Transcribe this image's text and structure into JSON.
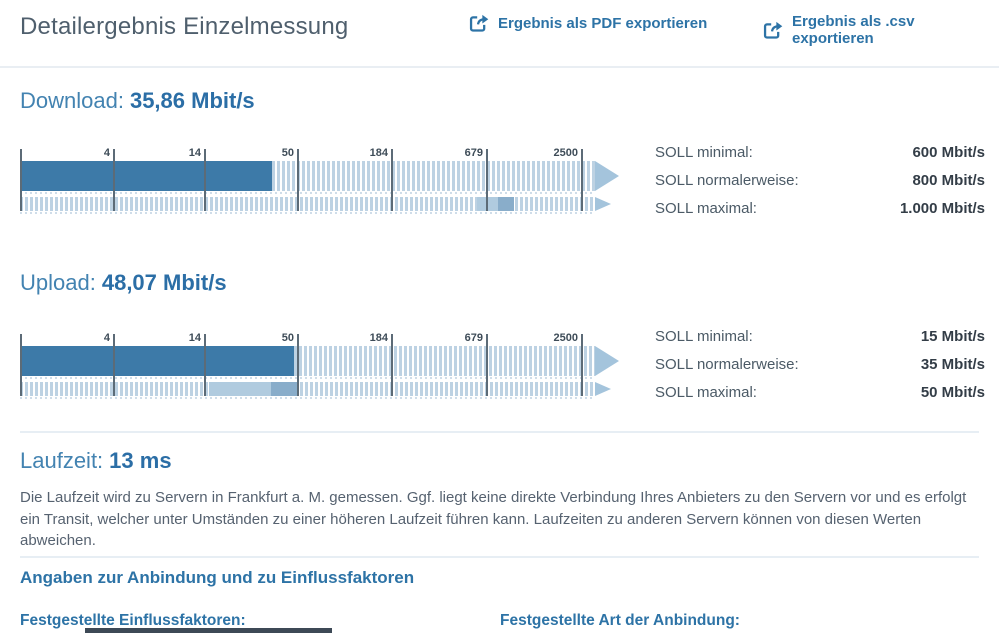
{
  "header": {
    "title": "Detailergebnis Einzelmessung",
    "export_pdf": "Ergebnis als PDF exportieren",
    "export_csv": "Ergebnis als .csv exportieren"
  },
  "download": {
    "label": "Download:",
    "value": "35,86 Mbit/s",
    "soll": [
      {
        "label": "SOLL minimal:",
        "value": "600 Mbit/s"
      },
      {
        "label": "SOLL normalerweise:",
        "value": "800 Mbit/s"
      },
      {
        "label": "SOLL maximal:",
        "value": "1.000 Mbit/s"
      }
    ]
  },
  "upload": {
    "label": "Upload:",
    "value": "48,07 Mbit/s",
    "soll": [
      {
        "label": "SOLL minimal:",
        "value": "15 Mbit/s"
      },
      {
        "label": "SOLL normalerweise:",
        "value": "35 Mbit/s"
      },
      {
        "label": "SOLL maximal:",
        "value": "50 Mbit/s"
      }
    ]
  },
  "laufzeit": {
    "label": "Laufzeit:",
    "value": "13 ms",
    "description": "Die Laufzeit wird zu Servern in Frankfurt a. M. gemessen. Ggf. liegt keine direkte Verbindung Ihres Anbieters zu den Servern vor und es erfolgt ein Transit, welcher unter Umständen zu einer höheren Laufzeit führen kann. Laufzeiten zu anderen Servern können von diesen Werten abweichen."
  },
  "anbindung": {
    "heading": "Angaben zur Anbindung und zu Einflussfaktoren",
    "left_label": "Festgestellte Einflussfaktoren:",
    "right_label": "Festgestellte Art der Anbindung:"
  },
  "chart_data": [
    {
      "type": "bar",
      "variant": "horizontal-log-gauge",
      "name": "download",
      "title": "Download",
      "measured_mbits": 35.86,
      "measured_display": "35,86 Mbit/s",
      "axis": {
        "scale": "log",
        "tick_values": [
          4,
          14,
          50,
          184,
          679,
          2500
        ],
        "unit": "Mbit/s"
      },
      "target_band": {
        "min": 600,
        "normal": 800,
        "max": 1000
      }
    },
    {
      "type": "bar",
      "variant": "horizontal-log-gauge",
      "name": "upload",
      "title": "Upload",
      "measured_mbits": 48.07,
      "measured_display": "48,07 Mbit/s",
      "axis": {
        "scale": "log",
        "tick_values": [
          4,
          14,
          50,
          184,
          679,
          2500
        ],
        "unit": "Mbit/s"
      },
      "target_band": {
        "min": 15,
        "normal": 35,
        "max": 50
      }
    }
  ],
  "colors": {
    "accent_blue": "#2d73a6",
    "heading_label_blue": "#4383b1",
    "heading_value_blue": "#2b6ea6",
    "title_gray": "#4f5f6d",
    "bar_solid": "#3d7aa8",
    "stripe": "#bdd2e3",
    "band_light": "#b0cbdf",
    "band_normal": "#89adca",
    "arrow": "#a4c4dc",
    "tick_line": "#5c6b77",
    "tick_label": "#3e4c58",
    "soll_label": "#4b5a66",
    "soll_value": "#333d47",
    "body_text": "#566270",
    "separator": "#e7eef4",
    "cutoff_bar": "#3d4956"
  }
}
